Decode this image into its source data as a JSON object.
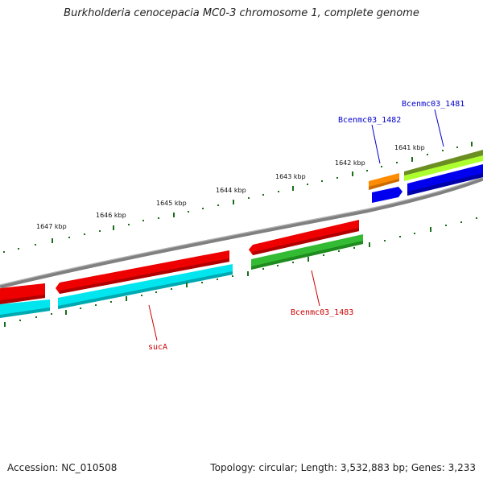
{
  "title": "Burkholderia cenocepacia MC0-3 chromosome 1, complete genome",
  "footer": {
    "accession": "Accession: NC_010508",
    "summary": "Topology: circular; Length: 3,532,883 bp; Genes: 3,233"
  },
  "ruler": [
    "1641 kbp",
    "1642 kbp",
    "1643 kbp",
    "1644 kbp",
    "1645 kbp",
    "1646 kbp",
    "1647 kbp"
  ],
  "features": [
    {
      "label": "Bcenmc03_1481",
      "color": "#0000cc"
    },
    {
      "label": "Bcenmc03_1482",
      "color": "#0000cc"
    },
    {
      "label": "Bcenmc03_1483",
      "color": "#cc0000"
    },
    {
      "label": "sucA",
      "color": "#cc0000"
    }
  ],
  "colors": {
    "backbone": "#808080",
    "tick": "#1a6e1a",
    "red": "#ee0000",
    "cyan": "#00e5ee",
    "green": "#33bb33",
    "blue": "#0000ee",
    "orange": "#ff8c00",
    "olive": "#6b8e23",
    "lightgreen": "#adff2f"
  }
}
